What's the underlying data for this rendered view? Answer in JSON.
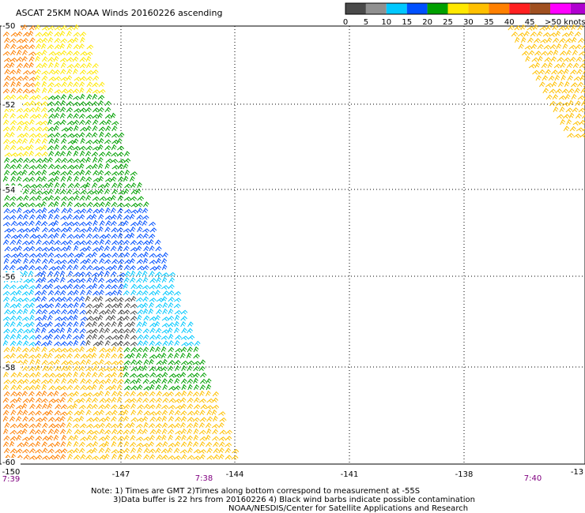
{
  "title": "ASCAT 25KM NOAA Winds 20160226 ascending",
  "legend": {
    "bins": [
      {
        "label": "0",
        "color": "#4a4a4a"
      },
      {
        "label": "5",
        "color": "#909090"
      },
      {
        "label": "10",
        "color": "#00c8ff"
      },
      {
        "label": "15",
        "color": "#0050ff"
      },
      {
        "label": "20",
        "color": "#00a000"
      },
      {
        "label": "25",
        "color": "#ffe800"
      },
      {
        "label": "30",
        "color": "#ffc000"
      },
      {
        "label": "35",
        "color": "#ff8000"
      },
      {
        "label": "40",
        "color": "#ff2020"
      },
      {
        "label": "45",
        "color": "#a05020"
      },
      {
        "label": "",
        "color": "#ff00ff"
      },
      {
        "label": "",
        "color": "#b000d0"
      },
      {
        "label": "",
        "color": "#6000a0"
      }
    ],
    "max_label": ">50 knots"
  },
  "axes": {
    "lon_labels": [
      "-150",
      "-147",
      "-144",
      "-141",
      "-138",
      "-13"
    ],
    "lat_labels": [
      "-50",
      "-52",
      "-54",
      "-56",
      "-58",
      "-60"
    ]
  },
  "times": {
    "t1": "7:39",
    "t2": "7:38",
    "t3": "7:40",
    "color": "#800080"
  },
  "notes": {
    "line1": "Note: 1) Times are GMT 2)Times along bottom correspond to measurement at -55S",
    "line2": "3)Data buffer is 22 hrs from 20160226 4) Black wind barbs indicate possible contamination",
    "line3": "NOAA/NESDIS/Center for Satellite Applications and Research"
  }
}
